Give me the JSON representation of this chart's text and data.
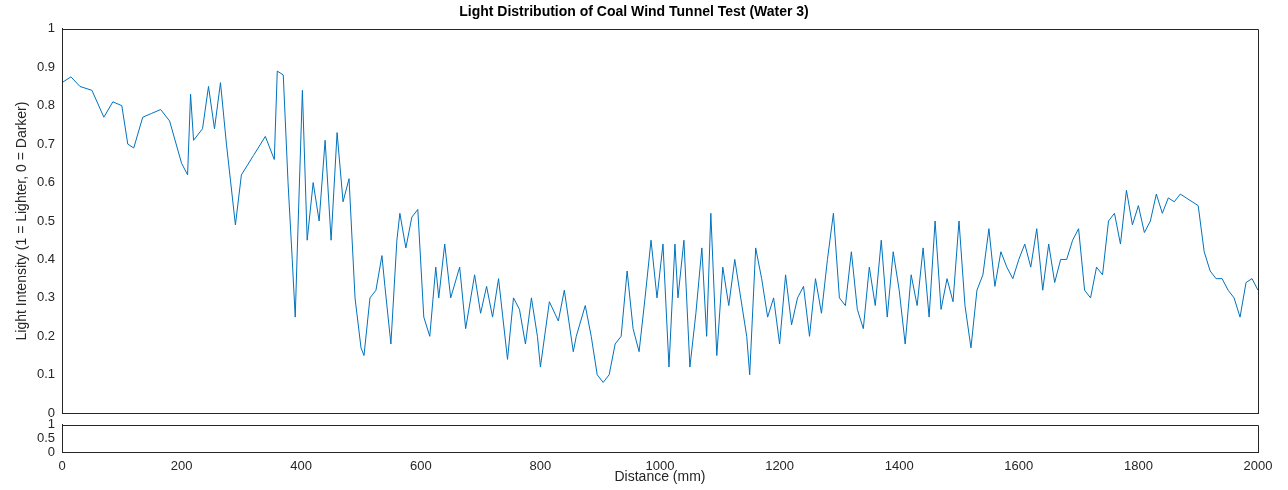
{
  "chart_data": [
    {
      "type": "line",
      "title": "Light Distribution of Coal Wind Tunnel Test (Water 3)",
      "ylabel": "Light Intensity (1 = Lighter, 0 = Darker)",
      "xlim": [
        0,
        2000
      ],
      "xticks": [
        0,
        200,
        400,
        600,
        800,
        1000,
        1200,
        1400,
        1600,
        1800,
        2000
      ],
      "ylim": [
        0,
        1
      ],
      "yticks": [
        0,
        0.1,
        0.2,
        0.3,
        0.4,
        0.5,
        0.6,
        0.7,
        0.8,
        0.9,
        1
      ],
      "grid": false,
      "legend": false,
      "tick_labels": "y",
      "marker": "none",
      "line_style": "solid",
      "series": [
        {
          "color": "#0072bd",
          "x": [
            0,
            15,
            30,
            50,
            70,
            85,
            100,
            110,
            120,
            135,
            150,
            165,
            180,
            200,
            210,
            215,
            220,
            235,
            245,
            255,
            265,
            275,
            290,
            300,
            320,
            340,
            355,
            360,
            370,
            378,
            385,
            390,
            395,
            402,
            410,
            420,
            430,
            440,
            450,
            460,
            470,
            480,
            490,
            500,
            505,
            515,
            525,
            535,
            540,
            550,
            560,
            565,
            575,
            585,
            595,
            605,
            615,
            625,
            630,
            640,
            650,
            665,
            675,
            690,
            700,
            710,
            720,
            730,
            745,
            755,
            765,
            775,
            785,
            795,
            800,
            815,
            830,
            840,
            855,
            860,
            875,
            885,
            895,
            905,
            915,
            925,
            935,
            945,
            955,
            965,
            975,
            985,
            995,
            1005,
            1015,
            1025,
            1030,
            1040,
            1050,
            1060,
            1070,
            1078,
            1085,
            1095,
            1105,
            1115,
            1125,
            1135,
            1145,
            1150,
            1160,
            1170,
            1180,
            1190,
            1200,
            1210,
            1220,
            1230,
            1240,
            1250,
            1260,
            1270,
            1280,
            1290,
            1300,
            1310,
            1320,
            1330,
            1340,
            1350,
            1360,
            1370,
            1380,
            1390,
            1400,
            1410,
            1420,
            1430,
            1440,
            1450,
            1460,
            1470,
            1480,
            1490,
            1500,
            1510,
            1520,
            1530,
            1540,
            1550,
            1560,
            1570,
            1580,
            1590,
            1600,
            1610,
            1620,
            1630,
            1640,
            1650,
            1660,
            1670,
            1680,
            1690,
            1700,
            1710,
            1720,
            1730,
            1740,
            1750,
            1760,
            1770,
            1780,
            1790,
            1800,
            1810,
            1820,
            1830,
            1840,
            1850,
            1860,
            1870,
            1880,
            1890,
            1900,
            1910,
            1920,
            1930,
            1940,
            1950,
            1960,
            1970,
            1980,
            1990,
            2000
          ],
          "values": [
            0.86,
            0.875,
            0.85,
            0.84,
            0.77,
            0.81,
            0.8,
            0.7,
            0.69,
            0.77,
            0.78,
            0.79,
            0.76,
            0.65,
            0.62,
            0.83,
            0.71,
            0.74,
            0.85,
            0.74,
            0.86,
            0.7,
            0.49,
            0.62,
            0.67,
            0.72,
            0.66,
            0.89,
            0.88,
            0.6,
            0.4,
            0.25,
            0.5,
            0.84,
            0.45,
            0.6,
            0.5,
            0.71,
            0.45,
            0.73,
            0.55,
            0.61,
            0.3,
            0.17,
            0.15,
            0.3,
            0.32,
            0.41,
            0.33,
            0.18,
            0.45,
            0.52,
            0.43,
            0.51,
            0.53,
            0.25,
            0.2,
            0.38,
            0.3,
            0.44,
            0.3,
            0.38,
            0.22,
            0.36,
            0.26,
            0.33,
            0.25,
            0.35,
            0.14,
            0.3,
            0.27,
            0.18,
            0.3,
            0.2,
            0.12,
            0.29,
            0.24,
            0.32,
            0.16,
            0.2,
            0.28,
            0.2,
            0.1,
            0.08,
            0.1,
            0.18,
            0.2,
            0.37,
            0.22,
            0.16,
            0.3,
            0.45,
            0.3,
            0.44,
            0.12,
            0.44,
            0.3,
            0.45,
            0.12,
            0.26,
            0.43,
            0.2,
            0.52,
            0.15,
            0.38,
            0.28,
            0.4,
            0.3,
            0.2,
            0.1,
            0.43,
            0.35,
            0.25,
            0.3,
            0.18,
            0.36,
            0.23,
            0.3,
            0.33,
            0.2,
            0.35,
            0.26,
            0.4,
            0.52,
            0.3,
            0.28,
            0.42,
            0.27,
            0.22,
            0.38,
            0.28,
            0.45,
            0.25,
            0.42,
            0.32,
            0.18,
            0.36,
            0.28,
            0.43,
            0.25,
            0.5,
            0.27,
            0.35,
            0.29,
            0.5,
            0.28,
            0.17,
            0.32,
            0.36,
            0.48,
            0.33,
            0.42,
            0.38,
            0.35,
            0.4,
            0.44,
            0.38,
            0.48,
            0.32,
            0.44,
            0.34,
            0.4,
            0.4,
            0.45,
            0.48,
            0.32,
            0.3,
            0.38,
            0.36,
            0.5,
            0.52,
            0.44,
            0.58,
            0.49,
            0.54,
            0.47,
            0.5,
            0.57,
            0.52,
            0.56,
            0.55,
            0.57,
            0.56,
            0.55,
            0.54,
            0.42,
            0.37,
            0.35,
            0.35,
            0.32,
            0.3,
            0.25,
            0.34,
            0.35,
            0.32
          ]
        }
      ]
    },
    {
      "type": "line",
      "xlabel": "Distance (mm)",
      "xlim": [
        0,
        2000
      ],
      "xticks": [
        0,
        200,
        400,
        600,
        800,
        1000,
        1200,
        1400,
        1600,
        1800,
        2000
      ],
      "ylim": [
        0,
        1
      ],
      "yticks": [
        0,
        0.5,
        1
      ],
      "grid": false,
      "legend": false
    }
  ]
}
